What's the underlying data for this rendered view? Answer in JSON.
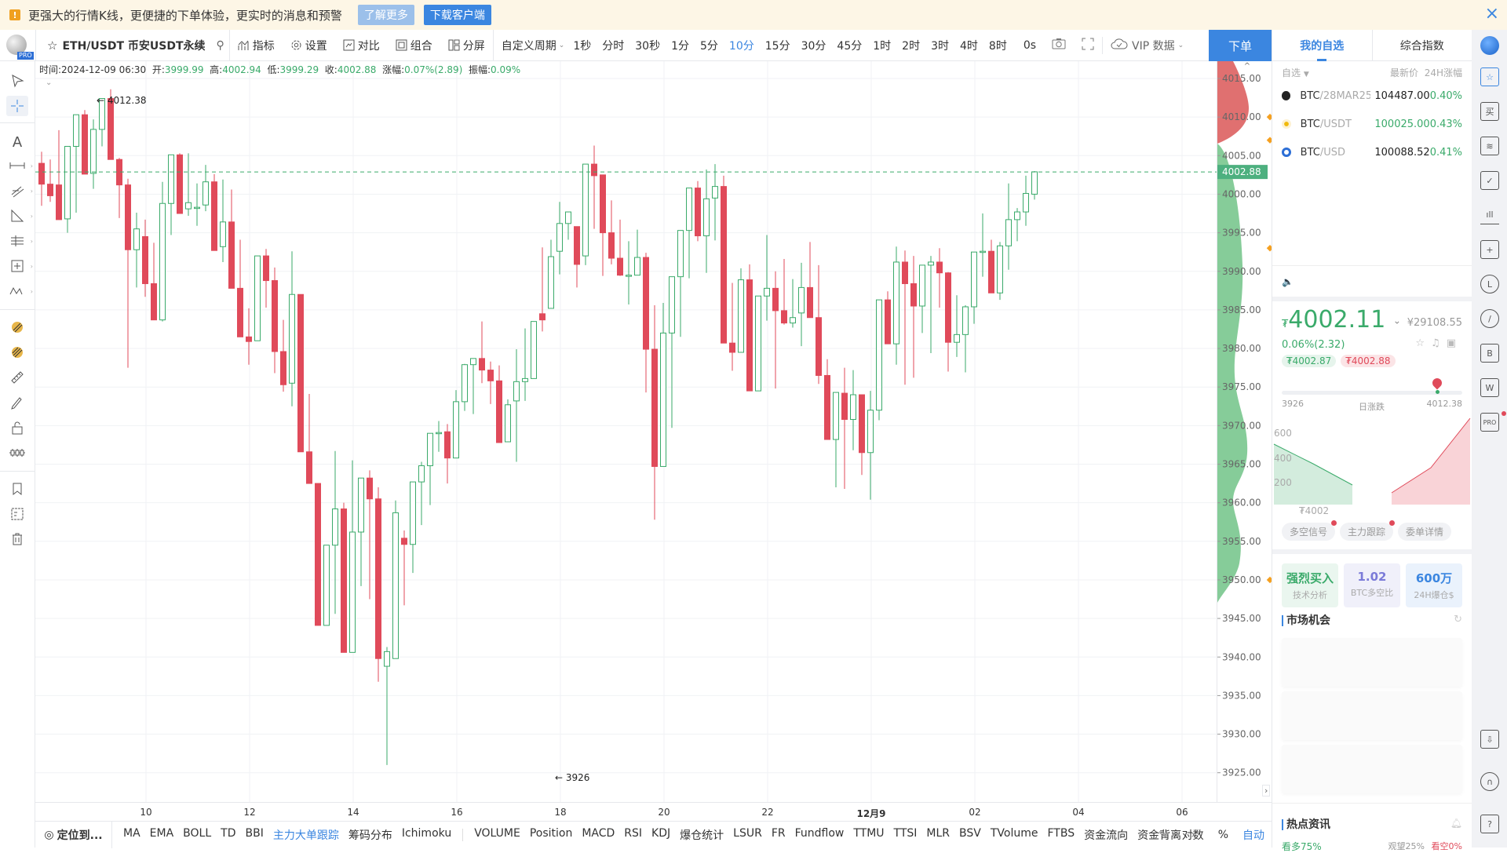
{
  "notice": {
    "icon": "warning-icon",
    "text": "更强大的行情K线，更便捷的下单体验，更实时的消息和预警",
    "learn_more": "了解更多",
    "download": "下载客户端",
    "close": "×"
  },
  "toolbar": {
    "logo_badge": "PRO",
    "symbol": "ETH/USDT 币安USDT永续",
    "indicators": "指标",
    "settings": "设置",
    "compare": "对比",
    "combine": "组合",
    "split": "分屏",
    "custom_period": "自定义周期",
    "periods": [
      "1秒",
      "分时",
      "30秒",
      "1分",
      "5分",
      "10分",
      "15分",
      "30分",
      "45分",
      "1时",
      "2时",
      "3时",
      "4时",
      "8时"
    ],
    "active_period": "10分",
    "countdown": "0s",
    "vip": "VIP 数据",
    "order": "下单"
  },
  "right_tabs": [
    "我的自选",
    "综合指数"
  ],
  "info": {
    "time_label": "时间:",
    "time": "2024-12-09 06:30",
    "open_label": "开:",
    "open": "3999.99",
    "high_label": "高:",
    "high": "4002.94",
    "low_label": "低:",
    "low": "3999.29",
    "close_label": "收:",
    "close": "4002.88",
    "change_label": "涨幅:",
    "change": "0.07%(2.89)",
    "amp_label": "振幅:",
    "amp": "0.09%"
  },
  "chart": {
    "up_color": "#3aaa6a",
    "down_color": "#e04a5a",
    "high_marker": "← 4012.38",
    "low_marker": "← 3926",
    "last_price": "4002.88",
    "price_ticks": [
      "4015.00",
      "4010.00",
      "4005.00",
      "4000.00",
      "3995.00",
      "3990.00",
      "3985.00",
      "3980.00",
      "3975.00",
      "3970.00",
      "3965.00",
      "3960.00",
      "3955.00",
      "3950.00",
      "3945.00",
      "3940.00",
      "3935.00",
      "3930.00",
      "3925.00"
    ],
    "time_ticks": [
      "10",
      "12",
      "14",
      "16",
      "18",
      "20",
      "22",
      "12月9",
      "02",
      "04",
      "06"
    ]
  },
  "bottom": {
    "locate": "定位到...",
    "main_indicators": [
      "MA",
      "EMA",
      "BOLL",
      "TD",
      "BBI",
      "主力大单跟踪",
      "筹码分布",
      "Ichimoku"
    ],
    "active_indicator": "主力大单跟踪",
    "sub_indicators": [
      "VOLUME",
      "Position",
      "MACD",
      "RSI",
      "KDJ",
      "爆仓统计",
      "LSUR",
      "FR",
      "Fundflow",
      "TTMU",
      "TTSI",
      "MLR",
      "BSV",
      "TVolume",
      "FTBS",
      "资金流向",
      "资金背离"
    ],
    "more": "›",
    "log": "对数",
    "percent": "%",
    "auto": "自动"
  },
  "watchlist": {
    "filter": "自选",
    "col_price": "最新价",
    "col_change": "24H涨幅",
    "rows": [
      {
        "base": "BTC",
        "quote": "/28MAR25",
        "price": "104487.00",
        "change": "0.40%",
        "price_color": "#222"
      },
      {
        "base": "BTC",
        "quote": "/USDT",
        "price": "100025.00",
        "change": "0.43%",
        "price_color": "#3aaa6a"
      },
      {
        "base": "BTC",
        "quote": "/USD",
        "price": "100088.52",
        "change": "0.41%",
        "price_color": "#222"
      }
    ]
  },
  "ticker": {
    "currency": "₮",
    "price": "4002.11",
    "cny": "¥29108.55",
    "change": "0.06%(2.32)",
    "bid": "₮4002.87",
    "ask": "₮4002.88",
    "day_low": "3926",
    "day_label": "日涨跌",
    "day_high": "4012.38"
  },
  "depth": {
    "y_ticks": [
      "600",
      "400",
      "200"
    ],
    "mid_label": "₮4002"
  },
  "signal_tabs": [
    "多空信号",
    "主力跟踪",
    "委单详情"
  ],
  "cards": [
    {
      "value": "强烈买入",
      "label": "技术分析",
      "color": "#3aaa6a",
      "bg": "#eaf6ef"
    },
    {
      "value": "1.02",
      "label": "BTC多空比",
      "color": "#7a7ad8",
      "bg": "#f0f0fa"
    },
    {
      "value": "600万",
      "label": "24H爆仓$",
      "color": "#3b86e0",
      "bg": "#eaf2fc"
    }
  ],
  "market_opportunity": "市场机会",
  "hot_news": "热点资讯",
  "news_stats": {
    "bull": "看多75%",
    "neutral": "观望25%",
    "bear": "看空0%"
  },
  "candles": [
    [
      4004,
      4005.5,
      3998.5,
      4001.3
    ],
    [
      4001.3,
      4004.5,
      3999,
      3999.8
    ],
    [
      4001.2,
      4008.3,
      3997.2,
      3996.7
    ],
    [
      3996.8,
      4005.5,
      3995,
      4006.2
    ],
    [
      4006.2,
      4010.3,
      3997.6,
      4010.3
    ],
    [
      4010.3,
      4010.9,
      4004.8,
      4002.6
    ],
    [
      4002.7,
      4009.7,
      4000.7,
      4008.4
    ],
    [
      4008.4,
      4012.4,
      4006.2,
      4012.4
    ],
    [
      4012.4,
      4013.6,
      4007.3,
      4004.5
    ],
    [
      4004.5,
      4004.7,
      3996.9,
      4001.2
    ],
    [
      4001.2,
      4002,
      3977.5,
      3992.8
    ],
    [
      3992.8,
      3997.6,
      3987.9,
      3995.5
    ],
    [
      3994.5,
      3996.7,
      3986.7,
      3988.4
    ],
    [
      3988.4,
      3993.7,
      3983.7,
      3983.7
    ],
    [
      3983.7,
      4001.6,
      3983.5,
      3998.8
    ],
    [
      3998.8,
      4005.1,
      3994.7,
      4005.1
    ],
    [
      4005.1,
      4005.3,
      3997.6,
      3997.5
    ],
    [
      3998.1,
      4005.3,
      3997.2,
      3998.9
    ],
    [
      3998.2,
      4001.4,
      3995.9,
      3998.3
    ],
    [
      3998.6,
      4003.8,
      3997.8,
      4001.6
    ],
    [
      4001.6,
      4002.6,
      3994.1,
      3992.7
    ],
    [
      3993.2,
      4001.9,
      3991.2,
      3996.4
    ],
    [
      3996.4,
      4000.6,
      3990.9,
      3987.8
    ],
    [
      3987.8,
      3994.1,
      3983.9,
      3981.5
    ],
    [
      3981.5,
      3985.2,
      3977.9,
      3980.9
    ],
    [
      3981,
      3989.4,
      3981,
      3992
    ],
    [
      3992,
      3992.9,
      3985.3,
      3988.8
    ],
    [
      3988.8,
      3990.5,
      3976.8,
      3979.6
    ],
    [
      3979.6,
      3983.7,
      3974.4,
      3975.3
    ],
    [
      3975.5,
      3992.6,
      3972.5,
      3987
    ],
    [
      3987,
      3987,
      3968.9,
      3966.6
    ],
    [
      3966.6,
      3974.1,
      3962.5,
      3962.5
    ],
    [
      3962.5,
      3962.5,
      3944.1,
      3944.1
    ],
    [
      3944.1,
      3954.5,
      3945.3,
      3954.5
    ],
    [
      3954.5,
      3966.7,
      3945.6,
      3959.2
    ],
    [
      3959.2,
      3960,
      3951.5,
      3940.6
    ],
    [
      3940.6,
      3965.5,
      3941.2,
      3956.2
    ],
    [
      3956.2,
      3962.4,
      3949.2,
      3963.2
    ],
    [
      3963.2,
      3964.2,
      3947.5,
      3960.5
    ],
    [
      3960.5,
      3962,
      3936.8,
      3939.8
    ],
    [
      3938.8,
      3941.3,
      3926,
      3940.7
    ],
    [
      3939.8,
      3960.3,
      3940.8,
      3958.7
    ],
    [
      3955.4,
      3956.4,
      3946.7,
      3954.6
    ],
    [
      3954.6,
      3962.7,
      3950.9,
      3962.7
    ],
    [
      3962.7,
      3965.3,
      3957.1,
      3964.8
    ],
    [
      3964.8,
      3968.2,
      3959.7,
      3969
    ],
    [
      3969,
      3970.6,
      3966.6,
      3969.1
    ],
    [
      3969.2,
      3970.2,
      3962.5,
      3965.8
    ],
    [
      3965.8,
      3974.6,
      3966,
      3973.1
    ],
    [
      3973.1,
      3978,
      3971.9,
      3977.9
    ],
    [
      3977.9,
      3978.6,
      3971.5,
      3978.7
    ],
    [
      3978.7,
      3983.5,
      3975.5,
      3977.2
    ],
    [
      3977.2,
      3978.3,
      3972.8,
      3975.8
    ],
    [
      3975.8,
      3977.8,
      3968.8,
      3967.8
    ],
    [
      3967.9,
      3973.4,
      3969.5,
      3972.7
    ],
    [
      3973.2,
      3979.9,
      3965.3,
      3975.7
    ],
    [
      3975.7,
      3982.6,
      3973.2,
      3976.1
    ],
    [
      3976.1,
      3982.8,
      3977.2,
      3983.5
    ],
    [
      3984.5,
      3993.1,
      3982.2,
      3983.7
    ],
    [
      3985.2,
      3994.1,
      3986.7,
      3991.9
    ],
    [
      3992.6,
      3999,
      3989.6,
      3996.2
    ],
    [
      3996.2,
      3997.5,
      3994.1,
      3997.7
    ],
    [
      3995.8,
      3995.8,
      3987.9,
      3990.9
    ],
    [
      3992,
      4001.2,
      3990.8,
      4003.9
    ],
    [
      4003.9,
      4006.3,
      3995.5,
      4002.4
    ],
    [
      4002.5,
      4000.8,
      3989.4,
      3995
    ],
    [
      3995,
      3999.2,
      3990.9,
      3991.7
    ],
    [
      3991.7,
      3996.7,
      3989.4,
      3989.5
    ],
    [
      3989.4,
      3993.9,
      3985.7,
      3989.5
    ],
    [
      3989.5,
      3995.4,
      3989.6,
      3991.8
    ],
    [
      3991.8,
      3992.4,
      3974.3,
      3979.9
    ],
    [
      3979.9,
      3985.6,
      3957.8,
      3964.7
    ],
    [
      3964.7,
      3985.9,
      3968.8,
      3982
    ],
    [
      3982,
      3987.7,
      3969.7,
      3989.3
    ],
    [
      3989.3,
      3991.5,
      3981.5,
      3995.3
    ],
    [
      3995.3,
      4000.1,
      3989.1,
      4000.8
    ],
    [
      4000.8,
      4001.7,
      3993.9,
      3994.6
    ],
    [
      3994.6,
      4003.2,
      3989.8,
      3999.4
    ],
    [
      3999.5,
      4003.9,
      3994,
      4001
    ],
    [
      4001,
      4002.4,
      3990.4,
      3980.7
    ],
    [
      3980.7,
      3988.5,
      3977.1,
      3979.5
    ],
    [
      3979.5,
      3990.4,
      3979.9,
      3988.9
    ],
    [
      3988.9,
      3990.9,
      3975.3,
      3974.5
    ],
    [
      3974.5,
      3983,
      3974.5,
      3986.8
    ],
    [
      3986.8,
      3994.7,
      3983.6,
      3987.8
    ],
    [
      3987.8,
      3990,
      3974.8,
      3984.9
    ],
    [
      3984.9,
      3991.6,
      3983.1,
      3983.3
    ],
    [
      3983.3,
      3989,
      3982.7,
      3984
    ],
    [
      3984.6,
      3991.1,
      3980.3,
      3987.9
    ],
    [
      3987.9,
      3993.8,
      3987.1,
      3984
    ],
    [
      3984,
      3990.8,
      3975.4,
      3976.5
    ],
    [
      3976.5,
      3978.6,
      3972,
      3968.2
    ],
    [
      3968.2,
      3973.5,
      3962,
      3974.3
    ],
    [
      3974.2,
      3977.5,
      3961.8,
      3970.8
    ],
    [
      3970.8,
      3977.2,
      3966.8,
      3974
    ],
    [
      3974,
      3974,
      3963.6,
      3966.5
    ],
    [
      3966.5,
      3974.5,
      3960.4,
      3972
    ],
    [
      3972,
      3981,
      3970.7,
      3986.3
    ],
    [
      3986.3,
      3987.4,
      3986.6,
      3980.6
    ],
    [
      3980.6,
      3993.2,
      3977.9,
      3991.2
    ],
    [
      3991.2,
      3992.7,
      3975.3,
      3988.4
    ],
    [
      3988.4,
      3992,
      3976.2,
      3985.5
    ],
    [
      3985.5,
      3988.5,
      3982,
      3990.8
    ],
    [
      3990.8,
      3992,
      3979.4,
      3991.2
    ],
    [
      3991.2,
      3993,
      3985.3,
      3989.8
    ],
    [
      3989.8,
      3989.9,
      3977,
      3980.8
    ],
    [
      3980.8,
      3986.9,
      3978.9,
      3981.8
    ],
    [
      3981.8,
      3985.6,
      3976.9,
      3985.4
    ],
    [
      3985.4,
      3988.7,
      3983.2,
      3992.5
    ],
    [
      3992.5,
      3997.5,
      3989.3,
      3992.6
    ],
    [
      3992.6,
      3994.1,
      3987.8,
      3987.2
    ],
    [
      3987.2,
      3993.8,
      3986.3,
      3993.3
    ],
    [
      3993.3,
      4001.4,
      3990.2,
      3996.7
    ],
    [
      3996.7,
      3998.2,
      3993.9,
      3997.7
    ],
    [
      3997.7,
      4002.4,
      3995.9,
      4000.1
    ],
    [
      4000,
      4003,
      3999.3,
      4002.9
    ]
  ]
}
